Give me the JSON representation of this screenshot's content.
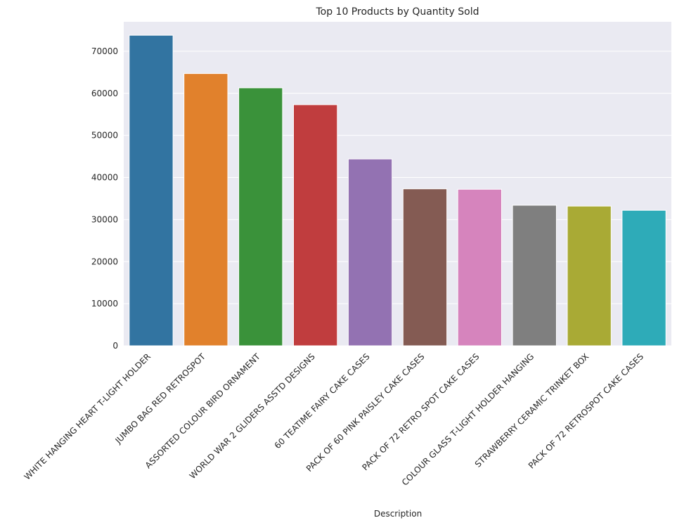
{
  "chart_data": {
    "type": "bar",
    "title": "Top 10 Products by Quantity Sold",
    "xlabel": "Description",
    "ylabel": "",
    "ylim": [
      0,
      77000
    ],
    "yticks": [
      0,
      10000,
      20000,
      30000,
      40000,
      50000,
      60000,
      70000
    ],
    "grid": true,
    "categories": [
      "WHITE HANGING HEART T-LIGHT HOLDER",
      "JUMBO BAG RED RETROSPOT",
      "ASSORTED COLOUR BIRD ORNAMENT",
      "WORLD WAR 2 GLIDERS ASSTD DESIGNS",
      "60 TEATIME FAIRY CAKE CASES",
      "PACK OF 60 PINK PAISLEY CAKE CASES",
      "PACK OF 72 RETRO SPOT CAKE CASES",
      "COLOUR GLASS T-LIGHT HOLDER HANGING",
      "STRAWBERRY CERAMIC TRINKET BOX",
      "PACK OF 72 RETROSPOT CAKE CASES"
    ],
    "values": [
      73800,
      64700,
      61300,
      57300,
      44400,
      37300,
      37200,
      33400,
      33200,
      32200
    ],
    "colors": [
      "#3274a1",
      "#e1812c",
      "#3a923a",
      "#c03d3e",
      "#9372b2",
      "#845b53",
      "#d684bd",
      "#7f7f7f",
      "#a9aa35",
      "#2eabb8"
    ],
    "background": "#eaeaf2",
    "grid_color": "#ffffff"
  }
}
